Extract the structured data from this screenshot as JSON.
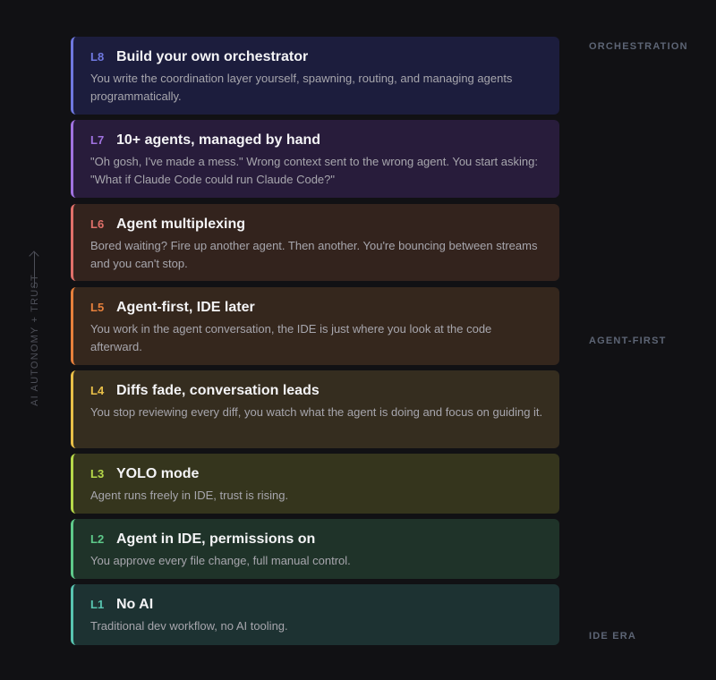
{
  "axis_label": "AI AUTONOMY + TRUST",
  "side_labels": {
    "top": "ORCHESTRATION",
    "middle": "AGENT-FIRST",
    "bottom": "IDE ERA"
  },
  "levels": [
    {
      "level": "L8",
      "title": "Build your own orchestrator",
      "description": "You write the coordination layer yourself, spawning, routing, and managing agents programmatically.",
      "accent": "#6f78e0",
      "bg": "#1c1d3d"
    },
    {
      "level": "L7",
      "title": "10+ agents, managed by hand",
      "description": "\"Oh gosh, I've made a mess.\" Wrong context sent to the wrong agent. You start asking: \"What if Claude Code could run Claude Code?\"",
      "accent": "#a072e0",
      "bg": "#281c3b"
    },
    {
      "level": "L6",
      "title": "Agent multiplexing",
      "description": "Bored waiting? Fire up another agent. Then another. You're bouncing between streams and you can't stop.",
      "accent": "#e0706a",
      "bg": "#33231d"
    },
    {
      "level": "L5",
      "title": "Agent-first, IDE later",
      "description": "You work in the agent conversation, the IDE is just where you look at the code afterward.",
      "accent": "#e6803c",
      "bg": "#35271d"
    },
    {
      "level": "L4",
      "title": "Diffs fade, conversation leads",
      "description": "You stop reviewing every diff, you watch what the agent is doing and focus on guiding it.",
      "accent": "#e8bf48",
      "bg": "#352d1f"
    },
    {
      "level": "L3",
      "title": "YOLO mode",
      "description": "Agent runs freely in IDE, trust is rising.",
      "accent": "#b6d84a",
      "bg": "#35351d"
    },
    {
      "level": "L2",
      "title": "Agent in IDE, permissions on",
      "description": "You approve every file change, full manual control.",
      "accent": "#5ec98a",
      "bg": "#1f3329"
    },
    {
      "level": "L1",
      "title": "No AI",
      "description": "Traditional dev workflow, no AI tooling.",
      "accent": "#58c4b0",
      "bg": "#1d3232"
    }
  ]
}
